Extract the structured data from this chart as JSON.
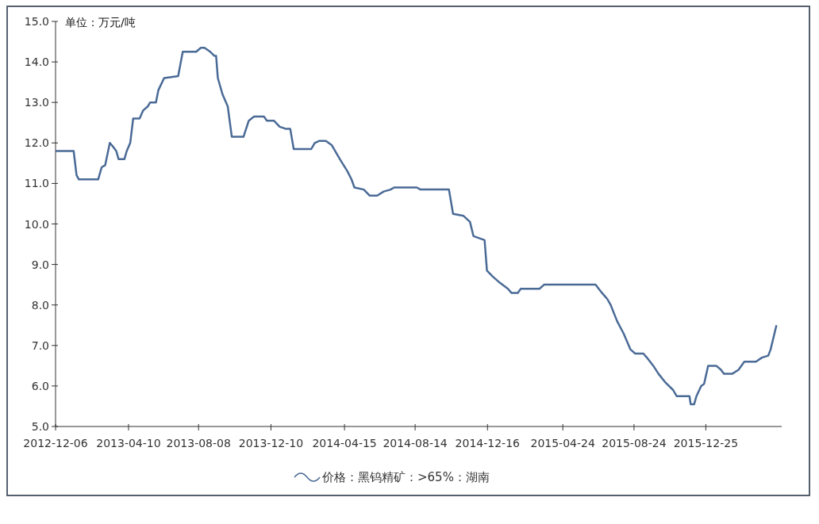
{
  "chart_data": {
    "type": "line",
    "ylabel": "单位：万元/吨",
    "legend": "bottom",
    "grid": false,
    "xlim": [
      "2012-12-06",
      "2016-05-03"
    ],
    "xticks": [
      "2012-12-06",
      "2013-04-10",
      "2013-08-08",
      "2013-12-10",
      "2014-04-15",
      "2014-08-14",
      "2014-12-16",
      "2015-04-24",
      "2015-08-24",
      "2015-12-25"
    ],
    "ylim": [
      5,
      15
    ],
    "yticks": [
      {
        "value": 5,
        "label": "5.0"
      },
      {
        "value": 6,
        "label": "6.0"
      },
      {
        "value": 7,
        "label": "7.0"
      },
      {
        "value": 8,
        "label": "8.0"
      },
      {
        "value": 9,
        "label": "9.0"
      },
      {
        "value": 10,
        "label": "10.0"
      },
      {
        "value": 11,
        "label": "11.0"
      },
      {
        "value": 12,
        "label": "12.0"
      },
      {
        "value": 13,
        "label": "13.0"
      },
      {
        "value": 14,
        "label": "14.0"
      },
      {
        "value": 15,
        "label": "15.0"
      }
    ],
    "series": [
      {
        "name": "价格：黑钨精矿：>65%：湖南",
        "color": "#4a6a96",
        "line_style": "solid",
        "marker": "none",
        "x": [
          "2012-12-06",
          "2013-01-06",
          "2013-01-11",
          "2013-01-15",
          "2013-02-17",
          "2013-02-23",
          "2013-03-01",
          "2013-03-09",
          "2013-03-15",
          "2013-03-20",
          "2013-03-24",
          "2013-04-03",
          "2013-04-07",
          "2013-04-13",
          "2013-04-18",
          "2013-04-29",
          "2013-05-05",
          "2013-05-13",
          "2013-05-17",
          "2013-05-27",
          "2013-05-31",
          "2013-06-10",
          "2013-07-04",
          "2013-07-12",
          "2013-08-04",
          "2013-08-12",
          "2013-08-18",
          "2013-08-28",
          "2013-09-04",
          "2013-09-07",
          "2013-09-10",
          "2013-09-18",
          "2013-09-27",
          "2013-10-04",
          "2013-10-24",
          "2013-11-02",
          "2013-11-11",
          "2013-11-28",
          "2013-12-03",
          "2013-12-15",
          "2013-12-25",
          "2014-01-04",
          "2014-01-12",
          "2014-01-18",
          "2014-02-17",
          "2014-02-23",
          "2014-03-03",
          "2014-03-14",
          "2014-03-24",
          "2014-04-07",
          "2014-04-20",
          "2014-04-27",
          "2014-05-02",
          "2014-05-18",
          "2014-05-28",
          "2014-06-10",
          "2014-06-21",
          "2014-07-03",
          "2014-07-09",
          "2014-08-17",
          "2014-08-23",
          "2014-10-11",
          "2014-10-18",
          "2014-11-05",
          "2014-11-16",
          "2014-11-22",
          "2014-12-11",
          "2014-12-15",
          "2014-12-25",
          "2015-01-06",
          "2015-01-20",
          "2015-01-26",
          "2015-02-06",
          "2015-02-11",
          "2015-03-15",
          "2015-03-23",
          "2015-06-19",
          "2015-06-30",
          "2015-07-09",
          "2015-07-15",
          "2015-07-26",
          "2015-08-06",
          "2015-08-12",
          "2015-08-18",
          "2015-08-26",
          "2015-09-09",
          "2015-09-15",
          "2015-09-26",
          "2015-10-05",
          "2015-10-16",
          "2015-10-30",
          "2015-11-05",
          "2015-11-27",
          "2015-11-29",
          "2015-12-05",
          "2015-12-09",
          "2015-12-17",
          "2015-12-22",
          "2015-12-29",
          "2016-01-12",
          "2016-01-20",
          "2016-01-25",
          "2016-02-08",
          "2016-02-19",
          "2016-02-29",
          "2016-03-20",
          "2016-03-30",
          "2016-04-10",
          "2016-04-14",
          "2016-04-24"
        ],
        "values": [
          11.8,
          11.8,
          11.2,
          11.1,
          11.1,
          11.4,
          11.45,
          12.0,
          11.9,
          11.8,
          11.6,
          11.6,
          11.8,
          12.0,
          12.6,
          12.6,
          12.8,
          12.9,
          13.0,
          13.0,
          13.3,
          13.6,
          13.65,
          14.25,
          14.25,
          14.35,
          14.35,
          14.25,
          14.15,
          14.15,
          13.6,
          13.2,
          12.9,
          12.15,
          12.15,
          12.55,
          12.65,
          12.65,
          12.55,
          12.55,
          12.4,
          12.35,
          12.35,
          11.85,
          11.85,
          12.0,
          12.05,
          12.05,
          11.95,
          11.6,
          11.3,
          11.1,
          10.9,
          10.85,
          10.7,
          10.7,
          10.8,
          10.85,
          10.9,
          10.9,
          10.85,
          10.85,
          10.25,
          10.2,
          10.05,
          9.7,
          9.6,
          8.85,
          8.7,
          8.55,
          8.4,
          8.3,
          8.3,
          8.4,
          8.4,
          8.5,
          8.5,
          8.3,
          8.15,
          8.0,
          7.6,
          7.3,
          7.1,
          6.9,
          6.8,
          6.8,
          6.7,
          6.5,
          6.3,
          6.1,
          5.9,
          5.75,
          5.75,
          5.55,
          5.55,
          5.75,
          6.0,
          6.05,
          6.5,
          6.5,
          6.4,
          6.3,
          6.3,
          6.4,
          6.6,
          6.6,
          6.7,
          6.75,
          6.9,
          7.5
        ]
      }
    ]
  }
}
